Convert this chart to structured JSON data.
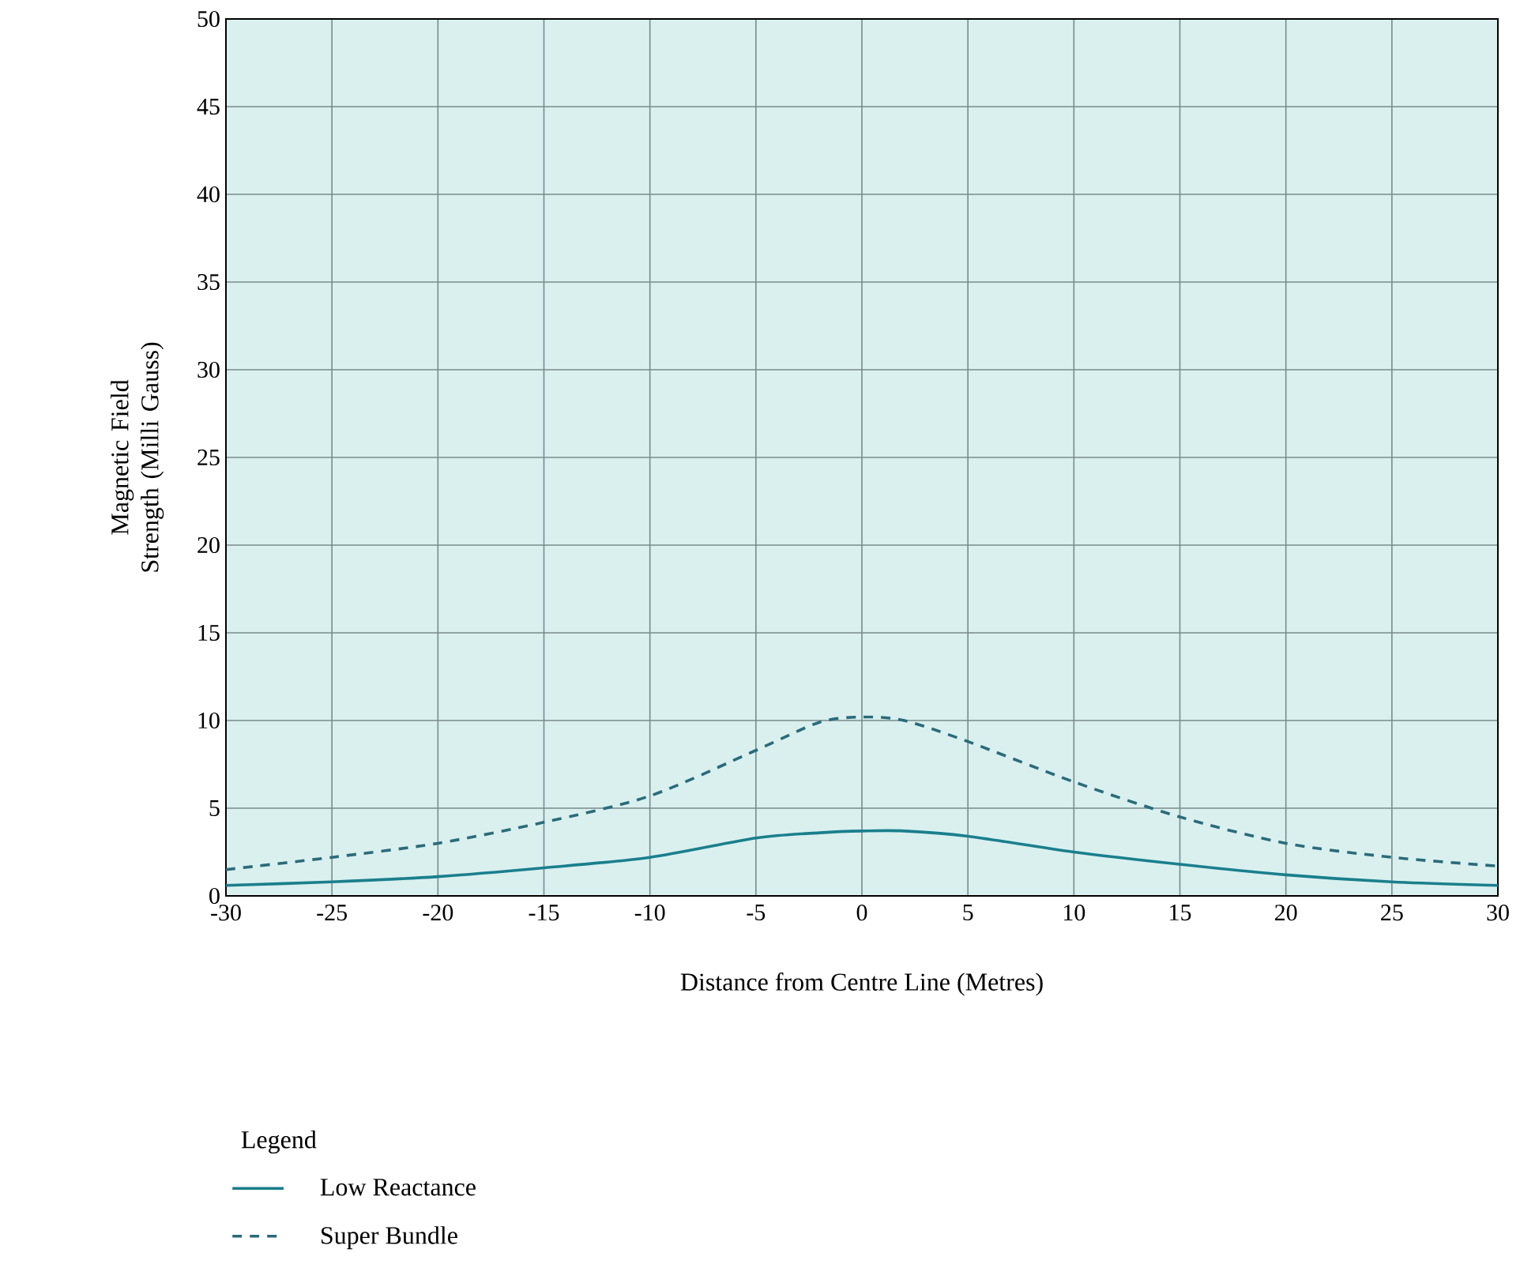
{
  "chart_data": {
    "type": "line",
    "xlabel": "Distance from Centre Line (Metres)",
    "ylabel": "Magnetic Field Strength (Milli Gauss)",
    "legend_title": "Legend",
    "x": [
      -30,
      -25,
      -20,
      -15,
      -10,
      -5,
      -2,
      0,
      2,
      5,
      10,
      15,
      20,
      25,
      30
    ],
    "series": [
      {
        "name": "Low Reactance",
        "color": "#1a7f8c",
        "line_style": "solid",
        "values": [
          0.6,
          0.8,
          1.1,
          1.6,
          2.2,
          3.3,
          3.6,
          3.7,
          3.7,
          3.4,
          2.5,
          1.8,
          1.2,
          0.8,
          0.6
        ]
      },
      {
        "name": "Super Bundle",
        "color": "#2b6b7a",
        "line_style": "dashed",
        "values": [
          1.5,
          2.2,
          3.0,
          4.2,
          5.7,
          8.3,
          9.9,
          10.2,
          10.0,
          8.8,
          6.5,
          4.5,
          3.0,
          2.2,
          1.7
        ]
      }
    ],
    "xlim": [
      -30,
      30
    ],
    "xticks": [
      -30,
      -25,
      -20,
      -15,
      -10,
      -5,
      0,
      5,
      10,
      15,
      20,
      25,
      30
    ],
    "ylim": [
      0,
      50
    ],
    "yticks": [
      0,
      5,
      10,
      15,
      20,
      25,
      30,
      35,
      40,
      45,
      50
    ],
    "grid": true,
    "legend": "bottom left"
  }
}
